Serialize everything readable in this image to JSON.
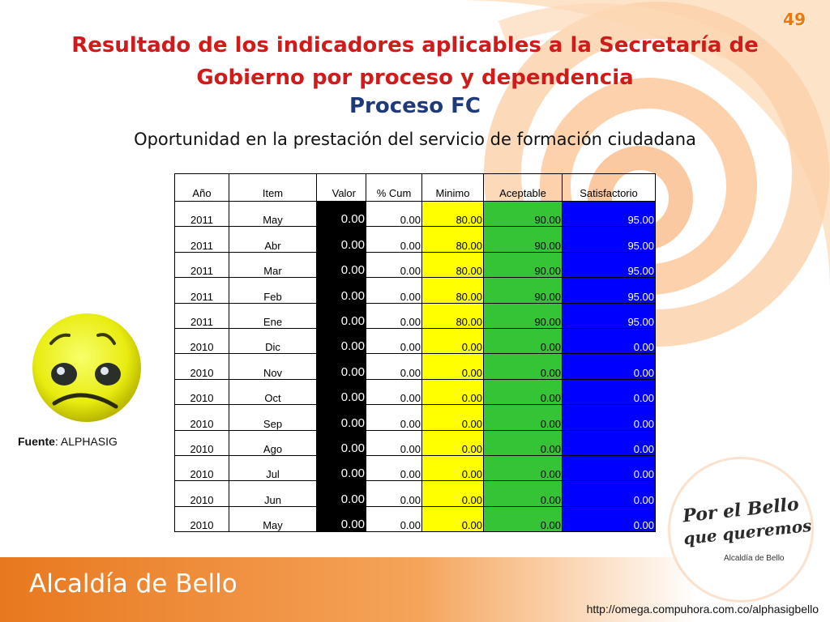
{
  "page_number": "49",
  "title_line1": "Resultado de los indicadores aplicables a la Secretaría de",
  "title_line2": "Gobierno por proceso y dependencia",
  "subtitle": "Proceso FC",
  "indicator": "Oportunidad en la prestación del servicio de formación ciudadana",
  "table": {
    "headers": [
      "Año",
      "Item",
      "Valor",
      "% Cum",
      "Minimo",
      "Aceptable",
      "Satisfactorio"
    ],
    "rows": [
      [
        "2011",
        "May",
        "0.00",
        "0.00",
        "80.00",
        "90.00",
        "95.00"
      ],
      [
        "2011",
        "Abr",
        "0.00",
        "0.00",
        "80.00",
        "90.00",
        "95.00"
      ],
      [
        "2011",
        "Mar",
        "0.00",
        "0.00",
        "80.00",
        "90.00",
        "95.00"
      ],
      [
        "2011",
        "Feb",
        "0.00",
        "0.00",
        "80.00",
        "90.00",
        "95.00"
      ],
      [
        "2011",
        "Ene",
        "0.00",
        "0.00",
        "80.00",
        "90.00",
        "95.00"
      ],
      [
        "2010",
        "Dic",
        "0.00",
        "0.00",
        "0.00",
        "0.00",
        "0.00"
      ],
      [
        "2010",
        "Nov",
        "0.00",
        "0.00",
        "0.00",
        "0.00",
        "0.00"
      ],
      [
        "2010",
        "Oct",
        "0.00",
        "0.00",
        "0.00",
        "0.00",
        "0.00"
      ],
      [
        "2010",
        "Sep",
        "0.00",
        "0.00",
        "0.00",
        "0.00",
        "0.00"
      ],
      [
        "2010",
        "Ago",
        "0.00",
        "0.00",
        "0.00",
        "0.00",
        "0.00"
      ],
      [
        "2010",
        "Jul",
        "0.00",
        "0.00",
        "0.00",
        "0.00",
        "0.00"
      ],
      [
        "2010",
        "Jun",
        "0.00",
        "0.00",
        "0.00",
        "0.00",
        "0.00"
      ],
      [
        "2010",
        "May",
        "0.00",
        "0.00",
        "0.00",
        "0.00",
        "0.00"
      ]
    ]
  },
  "source": {
    "label": "Fuente",
    "value": ": ALPHASIG"
  },
  "face_icon": "sad-face-icon",
  "logo": {
    "line1": "Por el Bello",
    "line2": "que queremos",
    "sub": "Alcaldía de Bello"
  },
  "footer": {
    "brand": "Alcaldía de Bello",
    "url": "http://omega.compuhora.com.co/alphasigbello"
  },
  "colors": {
    "title": "#d11a1a",
    "subtitle": "#1f3a7a",
    "accent_orange": "#e8780f",
    "valor": "#000000",
    "minimo": "#ffff00",
    "aceptable": "#35c435",
    "satisfactorio": "#0000ff"
  }
}
